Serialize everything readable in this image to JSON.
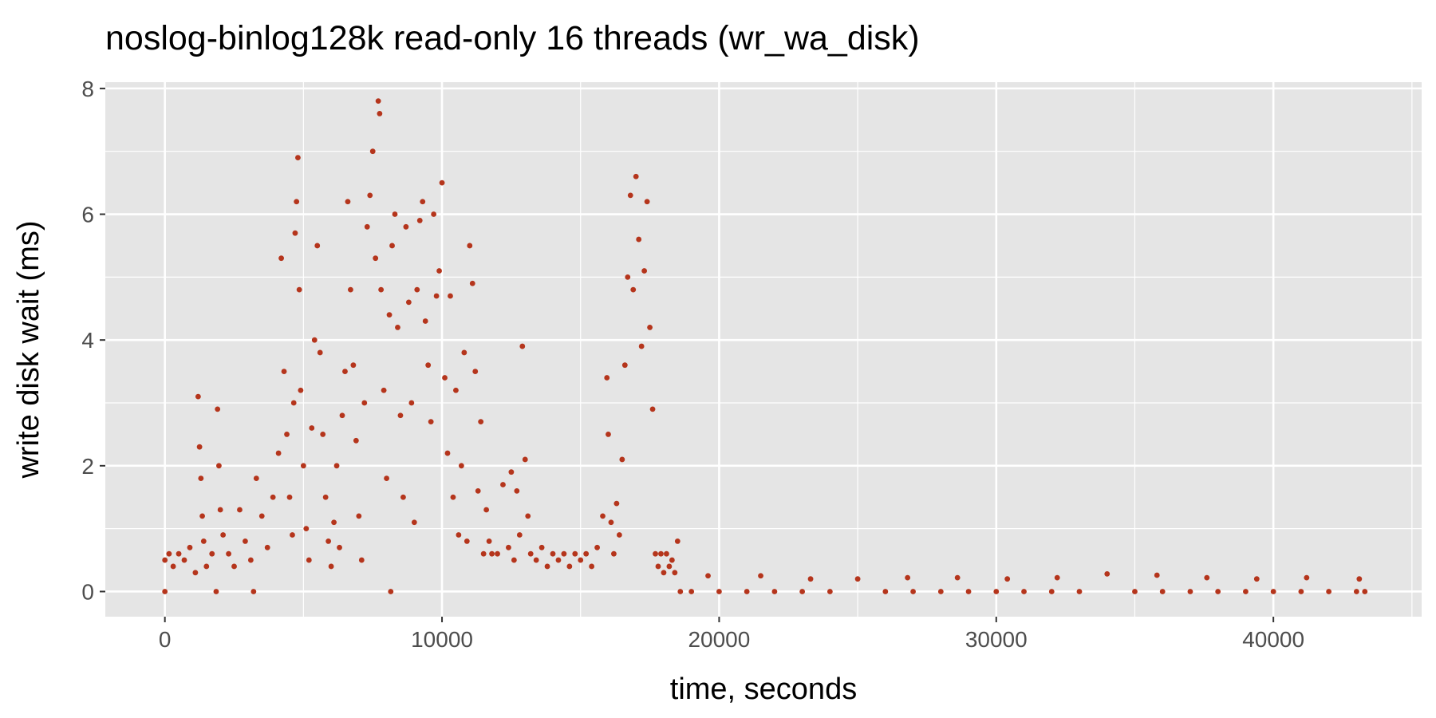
{
  "chart_data": {
    "type": "scatter",
    "title": "noslog-binlog128k read-only 16 threads (wr_wa_disk)",
    "xlabel": "time, seconds",
    "ylabel": "write disk wait (ms)",
    "xlim": [
      -2150,
      45350
    ],
    "ylim": [
      -0.4,
      8.1
    ],
    "x_ticks": [
      0,
      10000,
      20000,
      30000,
      40000
    ],
    "x_tick_labels": [
      "0",
      "10000",
      "20000",
      "30000",
      "40000"
    ],
    "y_ticks": [
      0,
      2,
      4,
      6,
      8
    ],
    "y_tick_labels": [
      "0",
      "2",
      "4",
      "6",
      "8"
    ],
    "grid": true,
    "legend": "none",
    "colors": {
      "point": "#b5351c",
      "panel": "#e5e5e5",
      "grid": "#ffffff"
    },
    "series": [
      {
        "points": [
          [
            0,
            0.0
          ],
          [
            0,
            0.5
          ],
          [
            150,
            0.6
          ],
          [
            300,
            0.4
          ],
          [
            500,
            0.6
          ],
          [
            700,
            0.5
          ],
          [
            900,
            0.7
          ],
          [
            1100,
            0.3
          ],
          [
            1200,
            3.1
          ],
          [
            1250,
            2.3
          ],
          [
            1300,
            1.8
          ],
          [
            1350,
            1.2
          ],
          [
            1400,
            0.8
          ],
          [
            1500,
            0.4
          ],
          [
            1700,
            0.6
          ],
          [
            1850,
            0.0
          ],
          [
            1900,
            2.9
          ],
          [
            1950,
            2.0
          ],
          [
            2000,
            1.3
          ],
          [
            2100,
            0.9
          ],
          [
            2300,
            0.6
          ],
          [
            2500,
            0.4
          ],
          [
            2700,
            1.3
          ],
          [
            2900,
            0.8
          ],
          [
            3100,
            0.5
          ],
          [
            3200,
            0.0
          ],
          [
            3300,
            1.8
          ],
          [
            3500,
            1.2
          ],
          [
            3700,
            0.7
          ],
          [
            3900,
            1.5
          ],
          [
            4100,
            2.2
          ],
          [
            4200,
            5.3
          ],
          [
            4300,
            3.5
          ],
          [
            4400,
            2.5
          ],
          [
            4500,
            1.5
          ],
          [
            4600,
            0.9
          ],
          [
            4650,
            3.0
          ],
          [
            4700,
            5.7
          ],
          [
            4750,
            6.2
          ],
          [
            4800,
            6.9
          ],
          [
            4850,
            4.8
          ],
          [
            4900,
            3.2
          ],
          [
            5000,
            2.0
          ],
          [
            5100,
            1.0
          ],
          [
            5200,
            0.5
          ],
          [
            5300,
            2.6
          ],
          [
            5400,
            4.0
          ],
          [
            5500,
            5.5
          ],
          [
            5600,
            3.8
          ],
          [
            5700,
            2.5
          ],
          [
            5800,
            1.5
          ],
          [
            5900,
            0.8
          ],
          [
            6000,
            0.4
          ],
          [
            6100,
            1.1
          ],
          [
            6200,
            2.0
          ],
          [
            6300,
            0.7
          ],
          [
            6400,
            2.8
          ],
          [
            6500,
            3.5
          ],
          [
            6600,
            6.2
          ],
          [
            6700,
            4.8
          ],
          [
            6800,
            3.6
          ],
          [
            6900,
            2.4
          ],
          [
            7000,
            1.2
          ],
          [
            7100,
            0.5
          ],
          [
            7200,
            3.0
          ],
          [
            7300,
            5.8
          ],
          [
            7400,
            6.3
          ],
          [
            7500,
            7.0
          ],
          [
            7600,
            5.3
          ],
          [
            7700,
            7.8
          ],
          [
            7750,
            7.6
          ],
          [
            7800,
            4.8
          ],
          [
            7900,
            3.2
          ],
          [
            8000,
            1.8
          ],
          [
            8100,
            4.4
          ],
          [
            8150,
            0.0
          ],
          [
            8200,
            5.5
          ],
          [
            8300,
            6.0
          ],
          [
            8400,
            4.2
          ],
          [
            8500,
            2.8
          ],
          [
            8600,
            1.5
          ],
          [
            8700,
            5.8
          ],
          [
            8800,
            4.6
          ],
          [
            8900,
            3.0
          ],
          [
            9000,
            1.1
          ],
          [
            9100,
            4.8
          ],
          [
            9200,
            5.9
          ],
          [
            9300,
            6.2
          ],
          [
            9400,
            4.3
          ],
          [
            9500,
            3.6
          ],
          [
            9600,
            2.7
          ],
          [
            9700,
            6.0
          ],
          [
            9800,
            4.7
          ],
          [
            9900,
            5.1
          ],
          [
            10000,
            6.5
          ],
          [
            10100,
            3.4
          ],
          [
            10200,
            2.2
          ],
          [
            10300,
            4.7
          ],
          [
            10400,
            1.5
          ],
          [
            10500,
            3.2
          ],
          [
            10600,
            0.9
          ],
          [
            10700,
            2.0
          ],
          [
            10800,
            3.8
          ],
          [
            10900,
            0.8
          ],
          [
            11000,
            5.5
          ],
          [
            11100,
            4.9
          ],
          [
            11200,
            3.5
          ],
          [
            11300,
            1.6
          ],
          [
            11400,
            2.7
          ],
          [
            11500,
            0.6
          ],
          [
            11600,
            1.3
          ],
          [
            11700,
            0.8
          ],
          [
            11800,
            0.6
          ],
          [
            12000,
            0.6
          ],
          [
            12200,
            1.7
          ],
          [
            12400,
            0.7
          ],
          [
            12500,
            1.9
          ],
          [
            12600,
            0.5
          ],
          [
            12700,
            1.6
          ],
          [
            12800,
            0.9
          ],
          [
            12900,
            3.9
          ],
          [
            13000,
            2.1
          ],
          [
            13100,
            1.2
          ],
          [
            13200,
            0.6
          ],
          [
            13400,
            0.5
          ],
          [
            13600,
            0.7
          ],
          [
            13800,
            0.4
          ],
          [
            14000,
            0.6
          ],
          [
            14200,
            0.5
          ],
          [
            14400,
            0.6
          ],
          [
            14600,
            0.4
          ],
          [
            14800,
            0.6
          ],
          [
            15000,
            0.5
          ],
          [
            15200,
            0.6
          ],
          [
            15400,
            0.4
          ],
          [
            15600,
            0.7
          ],
          [
            15800,
            1.2
          ],
          [
            15950,
            3.4
          ],
          [
            16000,
            2.5
          ],
          [
            16100,
            1.1
          ],
          [
            16200,
            0.6
          ],
          [
            16300,
            1.4
          ],
          [
            16400,
            0.9
          ],
          [
            16500,
            2.1
          ],
          [
            16600,
            3.6
          ],
          [
            16700,
            5.0
          ],
          [
            16800,
            6.3
          ],
          [
            16900,
            4.8
          ],
          [
            17000,
            6.6
          ],
          [
            17100,
            5.6
          ],
          [
            17200,
            3.9
          ],
          [
            17300,
            5.1
          ],
          [
            17400,
            6.2
          ],
          [
            17500,
            4.2
          ],
          [
            17600,
            2.9
          ],
          [
            17700,
            0.6
          ],
          [
            17800,
            0.4
          ],
          [
            17900,
            0.6
          ],
          [
            18000,
            0.3
          ],
          [
            18100,
            0.6
          ],
          [
            18200,
            0.4
          ],
          [
            18300,
            0.5
          ],
          [
            18400,
            0.3
          ],
          [
            18500,
            0.8
          ],
          [
            18600,
            0.0
          ],
          [
            19000,
            0.0
          ],
          [
            19600,
            0.25
          ],
          [
            20000,
            0.0
          ],
          [
            21000,
            0.0
          ],
          [
            21500,
            0.25
          ],
          [
            22000,
            0.0
          ],
          [
            23000,
            0.0
          ],
          [
            23300,
            0.2
          ],
          [
            24000,
            0.0
          ],
          [
            25000,
            0.2
          ],
          [
            26000,
            0.0
          ],
          [
            26800,
            0.22
          ],
          [
            27000,
            0.0
          ],
          [
            28000,
            0.0
          ],
          [
            28600,
            0.22
          ],
          [
            29000,
            0.0
          ],
          [
            30000,
            0.0
          ],
          [
            30400,
            0.2
          ],
          [
            31000,
            0.0
          ],
          [
            32000,
            0.0
          ],
          [
            32200,
            0.22
          ],
          [
            33000,
            0.0
          ],
          [
            34000,
            0.28
          ],
          [
            35000,
            0.0
          ],
          [
            35800,
            0.26
          ],
          [
            36000,
            0.0
          ],
          [
            37000,
            0.0
          ],
          [
            37600,
            0.22
          ],
          [
            38000,
            0.0
          ],
          [
            39000,
            0.0
          ],
          [
            39400,
            0.2
          ],
          [
            40000,
            0.0
          ],
          [
            41000,
            0.0
          ],
          [
            41200,
            0.22
          ],
          [
            42000,
            0.0
          ],
          [
            43000,
            0.0
          ],
          [
            43100,
            0.2
          ],
          [
            43300,
            0.0
          ]
        ]
      }
    ]
  }
}
